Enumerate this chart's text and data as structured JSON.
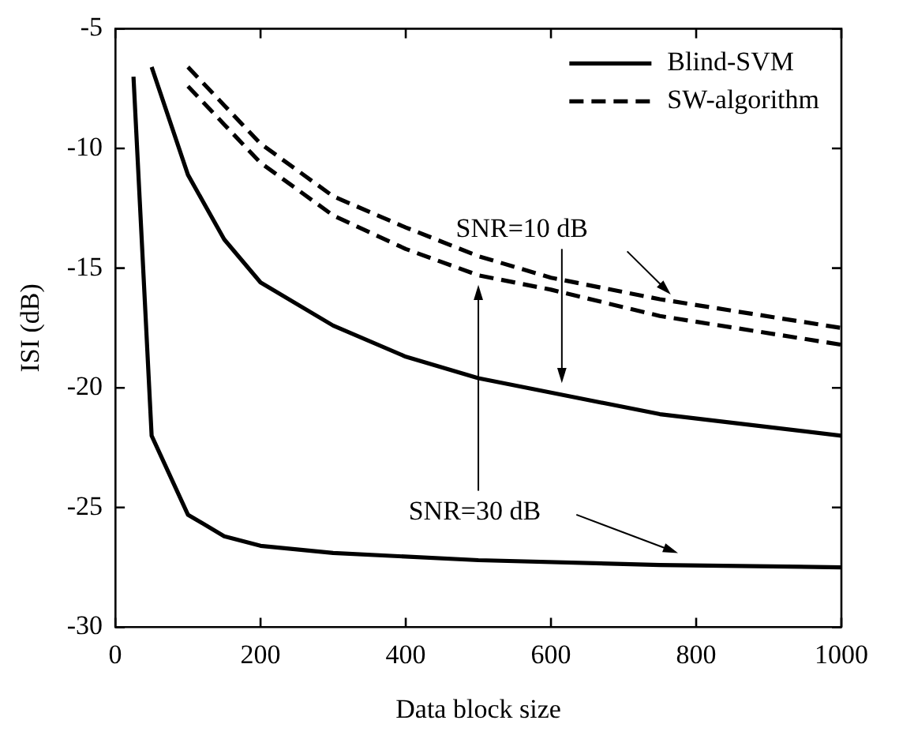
{
  "chart_data": {
    "type": "line",
    "xlabel": "Data block size",
    "ylabel": "ISI (dB)",
    "xlim": [
      0,
      1000
    ],
    "xticks": [
      0,
      200,
      400,
      600,
      800,
      1000
    ],
    "ylim": [
      -30,
      -5
    ],
    "yticks": [
      -30,
      -25,
      -20,
      -15,
      -10,
      -5
    ],
    "grid": false,
    "legend": "top right",
    "marker": "none",
    "series": [
      {
        "name": "Blind-SVM",
        "color": "#000000",
        "line_style": "solid",
        "x": [
          50,
          100,
          150,
          200,
          300,
          400,
          500,
          600,
          750,
          1000
        ],
        "values": [
          -6.6,
          -11.1,
          -13.8,
          -15.6,
          -17.4,
          -18.7,
          -19.6,
          -20.2,
          -21.1,
          -22.0
        ]
      },
      {
        "color": "#000000",
        "line_style": "solid",
        "x": [
          25,
          50,
          100,
          150,
          200,
          300,
          500,
          750,
          1000
        ],
        "values": [
          -7.0,
          -22.0,
          -25.3,
          -26.2,
          -26.6,
          -26.9,
          -27.2,
          -27.4,
          -27.5
        ]
      },
      {
        "name": "SW-algorithm",
        "color": "#000000",
        "line_style": "dashed",
        "x": [
          100,
          150,
          200,
          300,
          400,
          500,
          600,
          750,
          1000
        ],
        "values": [
          -6.6,
          -8.2,
          -9.8,
          -12.0,
          -13.3,
          -14.5,
          -15.4,
          -16.3,
          -17.5
        ]
      },
      {
        "color": "#000000",
        "line_style": "dashed",
        "x": [
          100,
          150,
          200,
          300,
          400,
          500,
          600,
          750,
          1000
        ],
        "values": [
          -7.4,
          -9.0,
          -10.6,
          -12.8,
          -14.2,
          -15.3,
          -15.9,
          -17.0,
          -18.2
        ]
      }
    ],
    "annotations": [
      "SNR=10 dB",
      "SNR=30 dB"
    ]
  }
}
